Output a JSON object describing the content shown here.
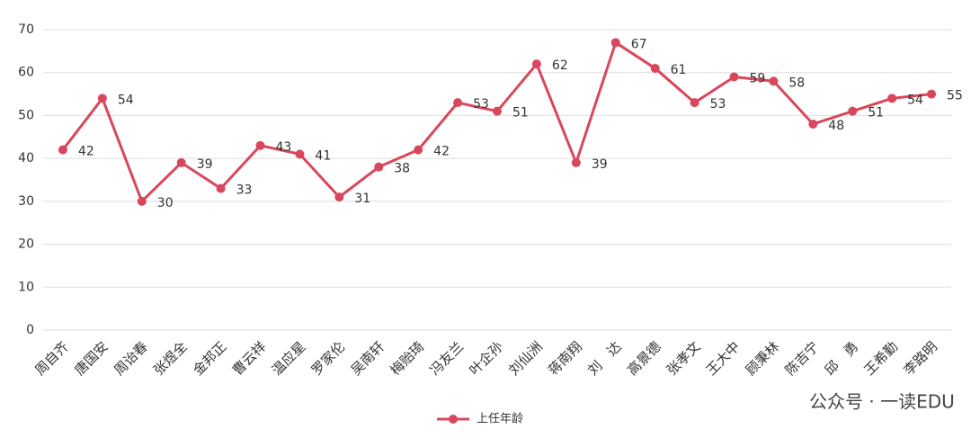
{
  "chart_data": {
    "type": "line",
    "categories": [
      "周自齐",
      "唐国安",
      "周诒春",
      "张煜全",
      "金邦正",
      "曹云祥",
      "温应星",
      "罗家伦",
      "吴南轩",
      "梅贻琦",
      "冯友兰",
      "叶企孙",
      "刘仙洲",
      "蒋南翔",
      "刘　达",
      "高景德",
      "张孝文",
      "王大中",
      "顾秉林",
      "陈吉宁",
      "邱　勇",
      "王希勤",
      "李路明"
    ],
    "series": [
      {
        "name": "上任年龄",
        "color": "#d9475c",
        "values": [
          42,
          54,
          30,
          39,
          33,
          43,
          41,
          31,
          38,
          42,
          53,
          51,
          62,
          39,
          67,
          61,
          53,
          59,
          58,
          48,
          51,
          54,
          55
        ]
      }
    ],
    "ylim": [
      0,
      70
    ],
    "yticks": [
      0,
      10,
      20,
      30,
      40,
      50,
      60,
      70
    ],
    "grid": true,
    "legend": "bottom",
    "watermark": "公众号 · 一读EDU"
  }
}
